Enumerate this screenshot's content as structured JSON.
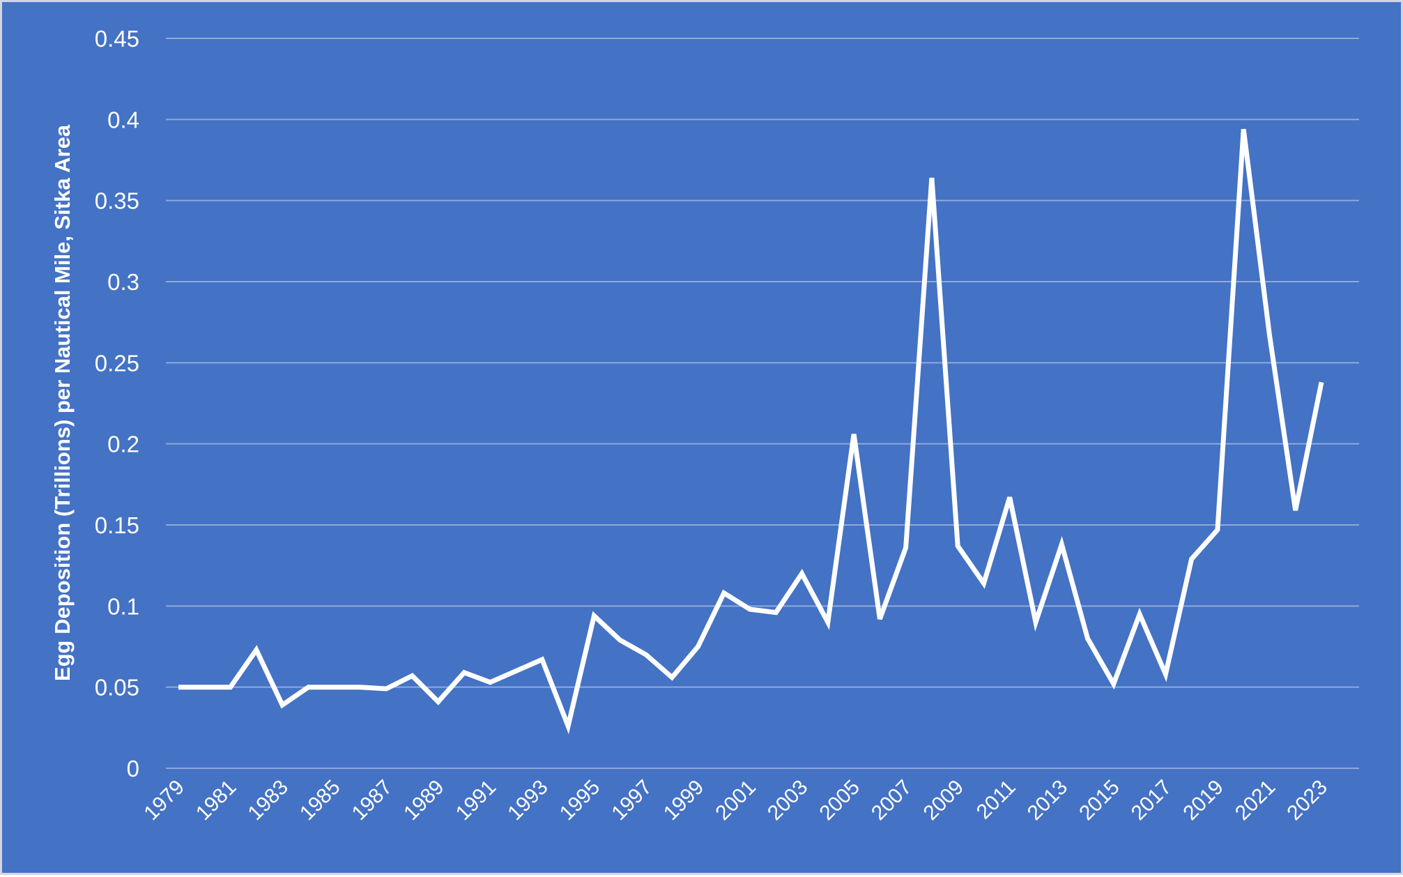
{
  "chart_data": {
    "type": "line",
    "title": "",
    "xlabel": "",
    "ylabel": "Egg Deposition (Trillions) per Nautical Mile, Sitka Area",
    "ylim": [
      0,
      0.45
    ],
    "y_ticks": [
      "0",
      "0.05",
      "0.1",
      "0.15",
      "0.2",
      "0.25",
      "0.3",
      "0.35",
      "0.4",
      "0.45"
    ],
    "x_tick_labels": [
      "1979",
      "1981",
      "1983",
      "1985",
      "1987",
      "1989",
      "1991",
      "1993",
      "1995",
      "1997",
      "1999",
      "2001",
      "2003",
      "2005",
      "2007",
      "2009",
      "2011",
      "2013",
      "2015",
      "2017",
      "2019",
      "2021",
      "2023"
    ],
    "grid": true,
    "legend": "none",
    "colors": {
      "background": "#4472C4",
      "line": "#FFFFFF",
      "grid": "#8FA9DC"
    },
    "x": [
      1979,
      1980,
      1981,
      1982,
      1983,
      1984,
      1985,
      1986,
      1987,
      1988,
      1989,
      1990,
      1991,
      1992,
      1993,
      1994,
      1995,
      1996,
      1997,
      1998,
      1999,
      2000,
      2001,
      2002,
      2003,
      2004,
      2005,
      2006,
      2007,
      2008,
      2009,
      2010,
      2011,
      2012,
      2013,
      2014,
      2015,
      2016,
      2017,
      2018,
      2019,
      2020,
      2021,
      2022,
      2023
    ],
    "series": [
      {
        "values": [
          0.05,
          0.05,
          0.05,
          0.073,
          0.039,
          0.05,
          0.05,
          0.05,
          0.049,
          0.057,
          0.041,
          0.059,
          0.053,
          0.06,
          0.067,
          0.026,
          0.094,
          0.079,
          0.07,
          0.056,
          0.075,
          0.108,
          0.098,
          0.096,
          0.12,
          0.09,
          0.206,
          0.092,
          0.136,
          0.364,
          0.137,
          0.114,
          0.167,
          0.09,
          0.138,
          0.08,
          0.052,
          0.095,
          0.058,
          0.129,
          0.147,
          0.394,
          0.267,
          0.159,
          0.238
        ]
      }
    ]
  }
}
